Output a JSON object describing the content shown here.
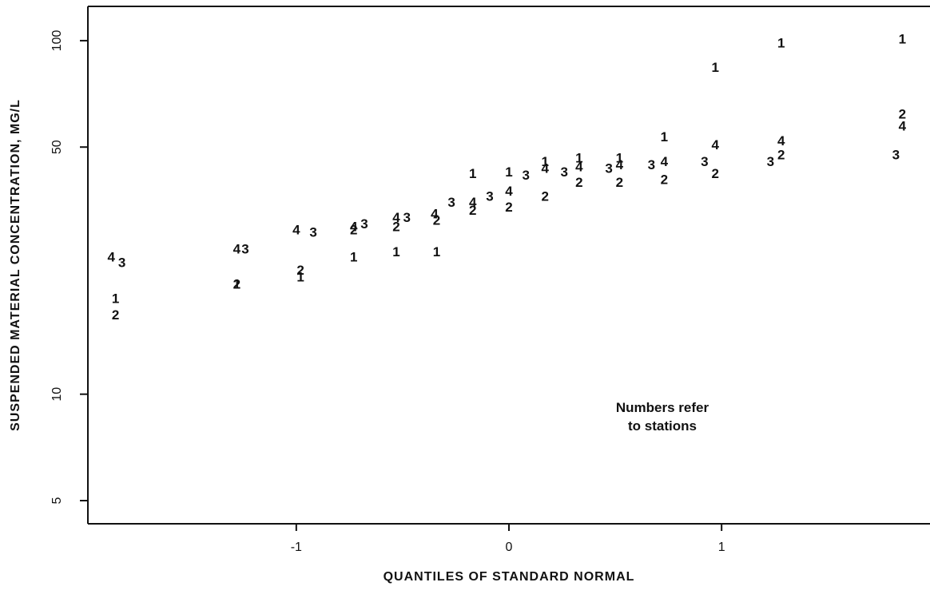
{
  "chart_data": {
    "type": "scatter",
    "title": "",
    "xlabel": "QUANTILES OF STANDARD NORMAL",
    "ylabel": "SUSPENDED MATERIAL CONCENTRATION, MG/L",
    "yscale": "log",
    "xlim": [
      -1.98,
      1.98
    ],
    "ylim": [
      4.3,
      125
    ],
    "x_ticks": [
      -1,
      0,
      1
    ],
    "x_tick_labels": [
      "-1",
      "0",
      "1"
    ],
    "y_ticks": [
      5,
      10,
      50,
      100
    ],
    "y_tick_labels": [
      "5",
      "10",
      "50",
      "100"
    ],
    "grid": false,
    "annotation": [
      "Numbers refer",
      "to stations"
    ],
    "series": [
      {
        "name": "1",
        "points": [
          [
            -1.85,
            18.7
          ],
          [
            -1.28,
            20.5
          ],
          [
            -0.98,
            21.5
          ],
          [
            -0.73,
            24.5
          ],
          [
            -0.53,
            25.3
          ],
          [
            -0.34,
            25.3
          ],
          [
            -0.17,
            42.2
          ],
          [
            0.0,
            42.6
          ],
          [
            0.17,
            45.6
          ],
          [
            0.33,
            46.7
          ],
          [
            0.52,
            46.7
          ],
          [
            0.73,
            53.6
          ],
          [
            0.97,
            84.3
          ],
          [
            1.28,
            98.6
          ],
          [
            1.85,
            101.3
          ]
        ]
      },
      {
        "name": "2",
        "points": [
          [
            -1.85,
            16.8
          ],
          [
            -1.28,
            20.5
          ],
          [
            -0.98,
            22.5
          ],
          [
            -0.73,
            29.2
          ],
          [
            -0.53,
            29.8
          ],
          [
            -0.34,
            31.1
          ],
          [
            -0.17,
            33.2
          ],
          [
            0.0,
            33.9
          ],
          [
            0.17,
            36.4
          ],
          [
            0.33,
            39.8
          ],
          [
            0.52,
            39.8
          ],
          [
            0.73,
            40.6
          ],
          [
            0.97,
            42.2
          ],
          [
            1.28,
            47.7
          ],
          [
            1.85,
            62.1
          ]
        ]
      },
      {
        "name": "3",
        "points": [
          [
            -1.82,
            23.6
          ],
          [
            -1.24,
            25.8
          ],
          [
            -0.92,
            28.8
          ],
          [
            -0.68,
            30.4
          ],
          [
            -0.48,
            31.7
          ],
          [
            -0.27,
            35.0
          ],
          [
            -0.09,
            36.4
          ],
          [
            0.08,
            41.7
          ],
          [
            0.26,
            42.6
          ],
          [
            0.47,
            43.6
          ],
          [
            0.67,
            44.6
          ],
          [
            0.92,
            45.6
          ],
          [
            1.23,
            45.6
          ],
          [
            1.82,
            47.7
          ]
        ]
      },
      {
        "name": "4",
        "points": [
          [
            -1.87,
            24.5
          ],
          [
            -1.28,
            25.8
          ],
          [
            -1.0,
            29.2
          ],
          [
            -0.73,
            29.8
          ],
          [
            -0.53,
            31.7
          ],
          [
            -0.35,
            32.4
          ],
          [
            -0.17,
            35.0
          ],
          [
            0.0,
            37.6
          ],
          [
            0.17,
            43.6
          ],
          [
            0.33,
            44.1
          ],
          [
            0.52,
            44.6
          ],
          [
            0.73,
            45.6
          ],
          [
            0.97,
            50.9
          ],
          [
            1.28,
            52.2
          ],
          [
            1.85,
            57.5
          ]
        ]
      }
    ]
  }
}
